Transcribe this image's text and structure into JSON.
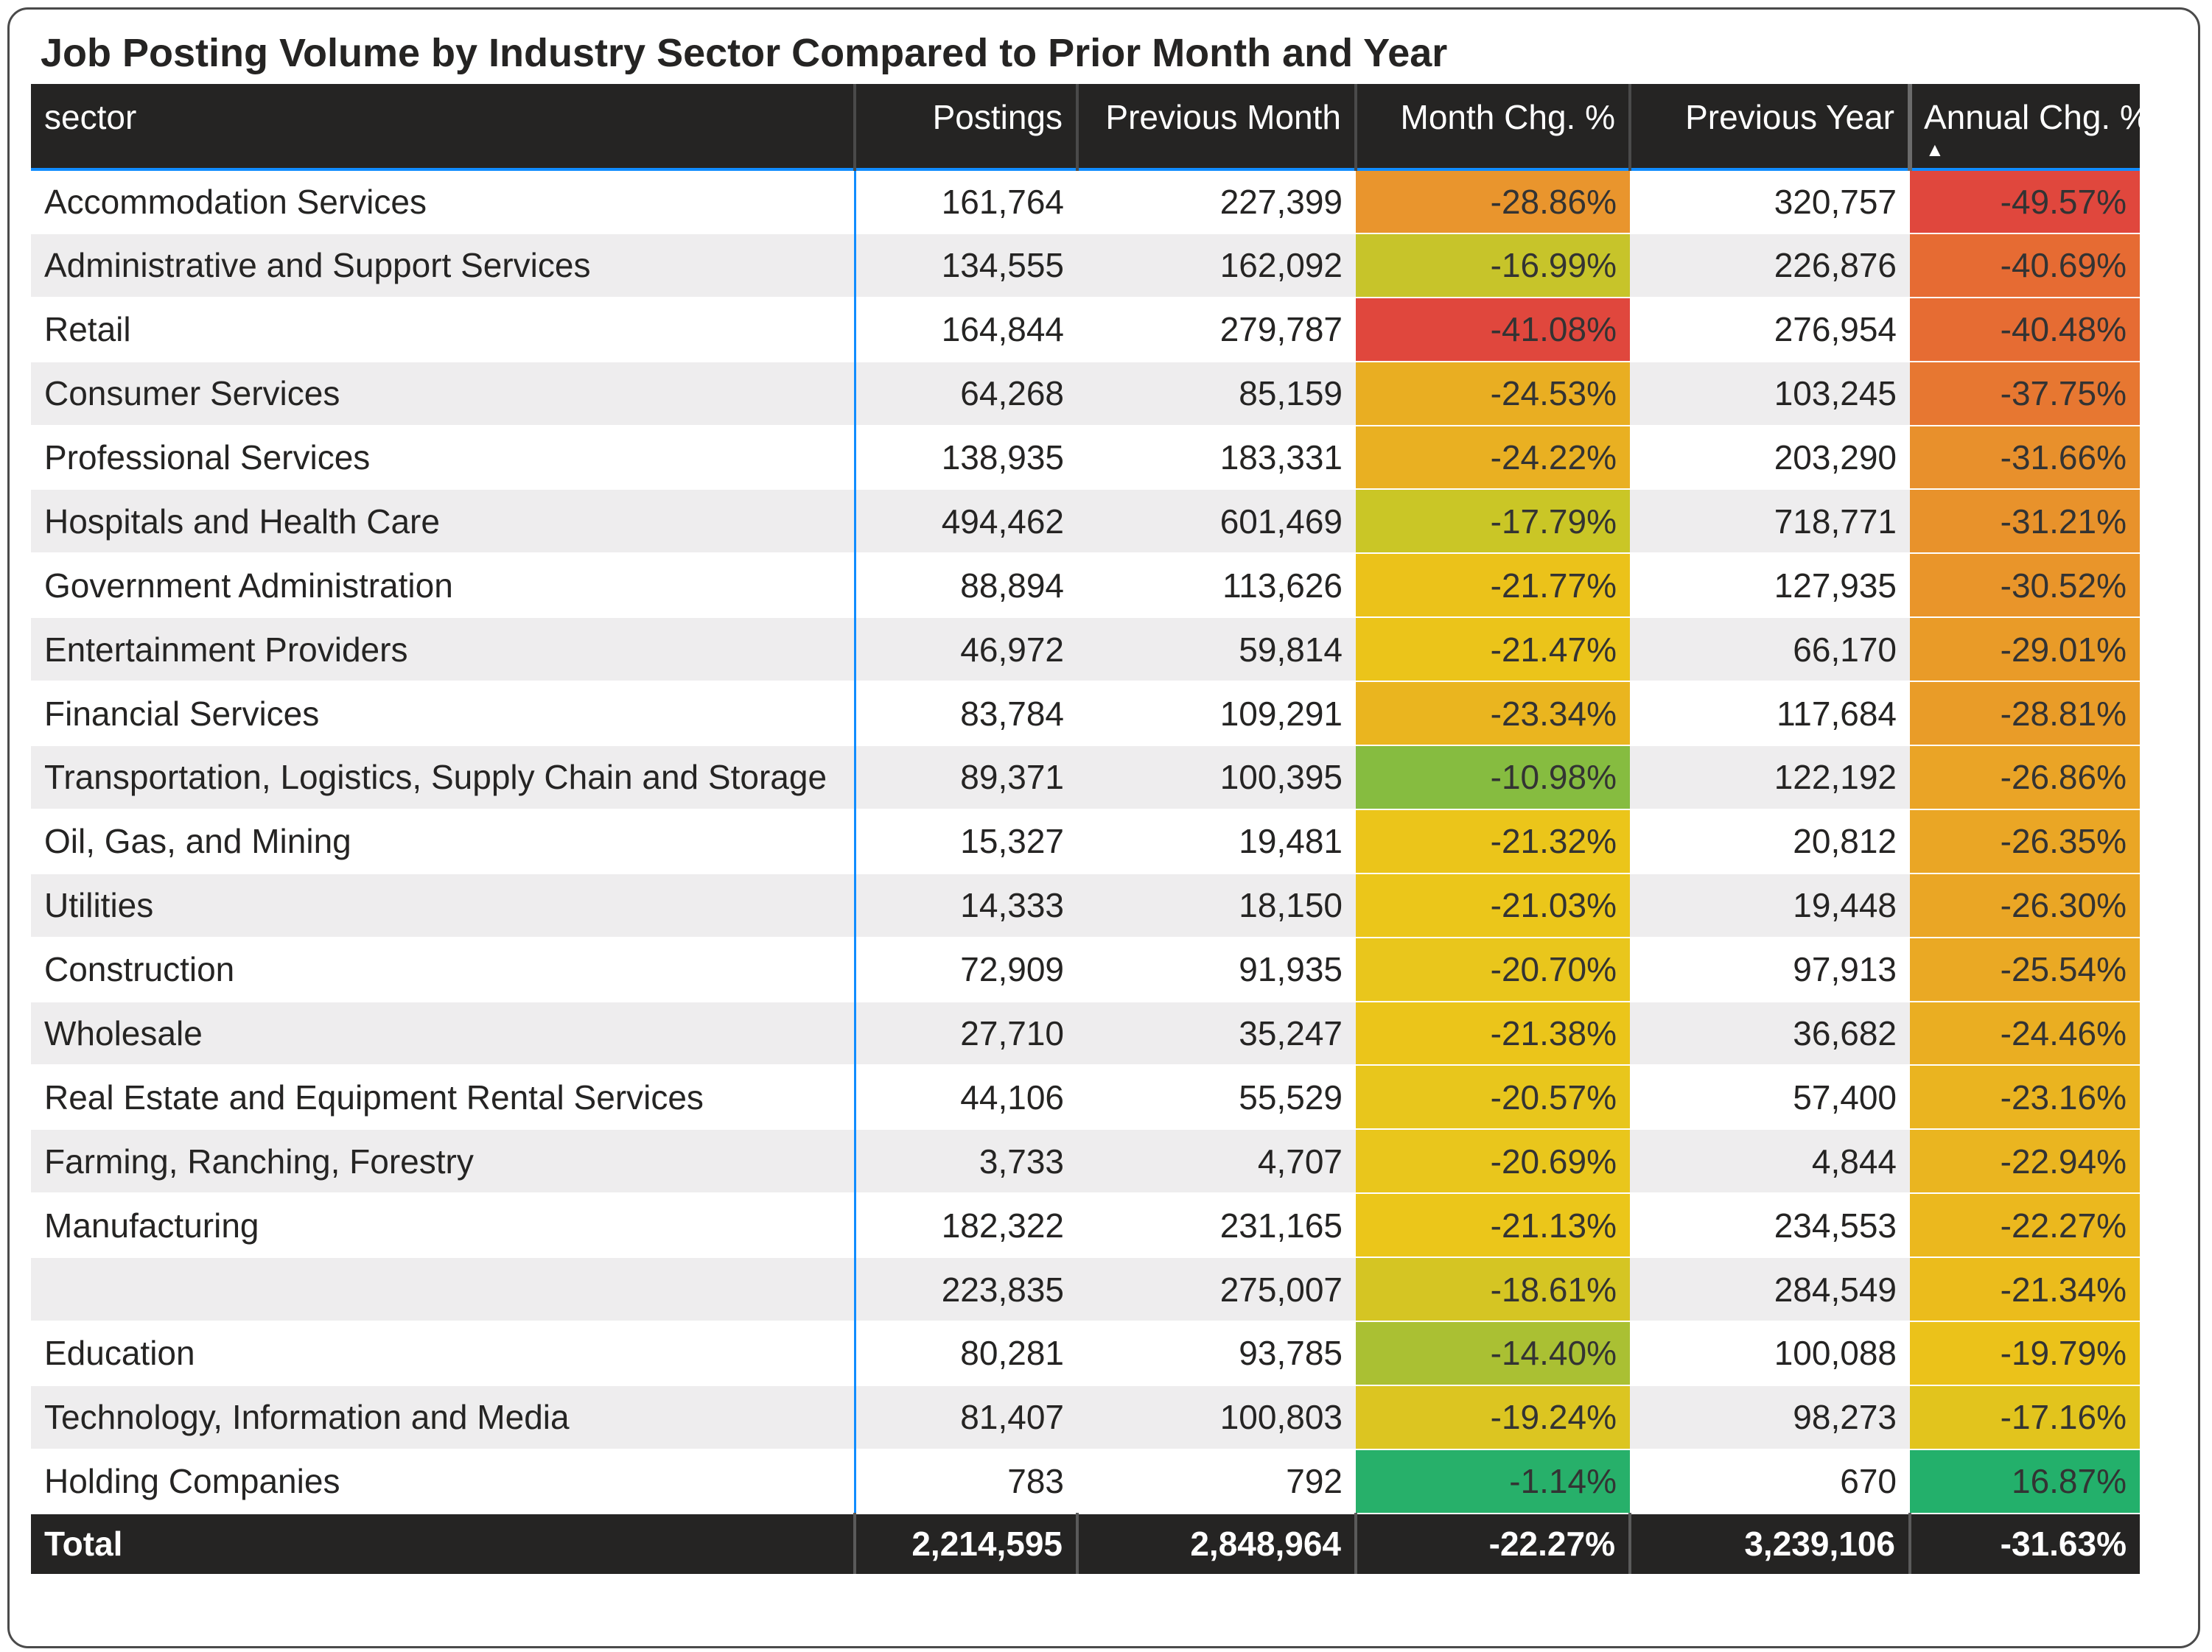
{
  "title": "Job Posting Volume by Industry Sector Compared to Prior Month and Year",
  "columns": [
    "sector",
    "Postings",
    "Previous Month",
    "Month Chg. %",
    "Previous Year",
    "Annual Chg. %"
  ],
  "sort": {
    "column": "Annual Chg. %",
    "direction": "ascending",
    "icon": "sort-ascending-icon"
  },
  "rows": [
    {
      "sector": "Accommodation Services",
      "postings": "161,764",
      "prev_month": "227,399",
      "month_chg": "-28.86%",
      "month_color": "#e9952d",
      "prev_year": "320,757",
      "annual_chg": "-49.57%",
      "annual_color": "#e0473d"
    },
    {
      "sector": "Administrative and Support Services",
      "postings": "134,555",
      "prev_month": "162,092",
      "month_chg": "-16.99%",
      "month_color": "#c7c42a",
      "prev_year": "226,876",
      "annual_chg": "-40.69%",
      "annual_color": "#e66b33"
    },
    {
      "sector": "Retail",
      "postings": "164,844",
      "prev_month": "279,787",
      "month_chg": "-41.08%",
      "month_color": "#e0473d",
      "prev_year": "276,954",
      "annual_chg": "-40.48%",
      "annual_color": "#e66c33"
    },
    {
      "sector": "Consumer Services",
      "postings": "64,268",
      "prev_month": "85,159",
      "month_chg": "-24.53%",
      "month_color": "#e9ae22",
      "prev_year": "103,245",
      "annual_chg": "-37.75%",
      "annual_color": "#e77731"
    },
    {
      "sector": "Professional Services",
      "postings": "138,935",
      "prev_month": "183,331",
      "month_chg": "-24.22%",
      "month_color": "#e9b022",
      "prev_year": "203,290",
      "annual_chg": "-31.66%",
      "annual_color": "#e8902c"
    },
    {
      "sector": "Hospitals and Health Care",
      "postings": "494,462",
      "prev_month": "601,469",
      "month_chg": "-17.79%",
      "month_color": "#cac626",
      "prev_year": "718,771",
      "annual_chg": "-31.21%",
      "annual_color": "#e8922b"
    },
    {
      "sector": "Government Administration",
      "postings": "88,894",
      "prev_month": "113,626",
      "month_chg": "-21.77%",
      "month_color": "#ebc21a",
      "prev_year": "127,935",
      "annual_chg": "-30.52%",
      "annual_color": "#e9952a"
    },
    {
      "sector": "Entertainment Providers",
      "postings": "46,972",
      "prev_month": "59,814",
      "month_chg": "-21.47%",
      "month_color": "#ebc41a",
      "prev_year": "66,170",
      "annual_chg": "-29.01%",
      "annual_color": "#e99b28"
    },
    {
      "sector": "Financial Services",
      "postings": "83,784",
      "prev_month": "109,291",
      "month_chg": "-23.34%",
      "month_color": "#eab51f",
      "prev_year": "117,684",
      "annual_chg": "-28.81%",
      "annual_color": "#e99c28"
    },
    {
      "sector": "Transportation, Logistics, Supply Chain and Storage",
      "postings": "89,371",
      "prev_month": "100,395",
      "month_chg": "-10.98%",
      "month_color": "#86bc40",
      "prev_year": "122,192",
      "annual_chg": "-26.86%",
      "annual_color": "#eaa426"
    },
    {
      "sector": "Oil, Gas, and Mining",
      "postings": "15,327",
      "prev_month": "19,481",
      "month_chg": "-21.32%",
      "month_color": "#ebc51a",
      "prev_year": "20,812",
      "annual_chg": "-26.35%",
      "annual_color": "#eaa625"
    },
    {
      "sector": "Utilities",
      "postings": "14,333",
      "prev_month": "18,150",
      "month_chg": "-21.03%",
      "month_color": "#ebc61a",
      "prev_year": "19,448",
      "annual_chg": "-26.30%",
      "annual_color": "#eaa625"
    },
    {
      "sector": "Construction",
      "postings": "72,909",
      "prev_month": "91,935",
      "month_chg": "-20.70%",
      "month_color": "#e9c61c",
      "prev_year": "97,913",
      "annual_chg": "-25.54%",
      "annual_color": "#eaa924"
    },
    {
      "sector": "Wholesale",
      "postings": "27,710",
      "prev_month": "35,247",
      "month_chg": "-21.38%",
      "month_color": "#ebc51a",
      "prev_year": "36,682",
      "annual_chg": "-24.46%",
      "annual_color": "#eaae22"
    },
    {
      "sector": "Real Estate and Equipment Rental Services",
      "postings": "44,106",
      "prev_month": "55,529",
      "month_chg": "-20.57%",
      "month_color": "#e8c61c",
      "prev_year": "57,400",
      "annual_chg": "-23.16%",
      "annual_color": "#eab420"
    },
    {
      "sector": "Farming, Ranching, Forestry",
      "postings": "3,733",
      "prev_month": "4,707",
      "month_chg": "-20.69%",
      "month_color": "#e9c61c",
      "prev_year": "4,844",
      "annual_chg": "-22.94%",
      "annual_color": "#eab520"
    },
    {
      "sector": "Manufacturing",
      "postings": "182,322",
      "prev_month": "231,165",
      "month_chg": "-21.13%",
      "month_color": "#ebc61a",
      "prev_year": "234,553",
      "annual_chg": "-22.27%",
      "annual_color": "#ebb81e"
    },
    {
      "sector": "",
      "postings": "223,835",
      "prev_month": "275,007",
      "month_chg": "-18.61%",
      "month_color": "#d5c523",
      "prev_year": "284,549",
      "annual_chg": "-21.34%",
      "annual_color": "#ebbc1c"
    },
    {
      "sector": "Education",
      "postings": "80,281",
      "prev_month": "93,785",
      "month_chg": "-14.40%",
      "month_color": "#aac033",
      "prev_year": "100,088",
      "annual_chg": "-19.79%",
      "annual_color": "#ebc21a"
    },
    {
      "sector": "Technology, Information and Media",
      "postings": "81,407",
      "prev_month": "100,803",
      "month_chg": "-19.24%",
      "month_color": "#dcc521",
      "prev_year": "98,273",
      "annual_chg": "-17.16%",
      "annual_color": "#e2c41d"
    },
    {
      "sector": "Holding Companies",
      "postings": "783",
      "prev_month": "792",
      "month_chg": "-1.14%",
      "month_color": "#27b06a",
      "prev_year": "670",
      "annual_chg": "16.87%",
      "annual_color": "#23b06b"
    }
  ],
  "total": {
    "label": "Total",
    "postings": "2,214,595",
    "prev_month": "2,848,964",
    "month_chg": "-22.27%",
    "prev_year": "3,239,106",
    "annual_chg": "-31.63%"
  }
}
